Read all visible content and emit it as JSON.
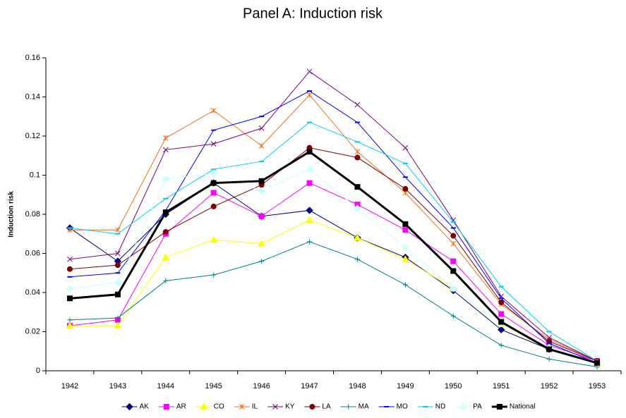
{
  "chart_data": {
    "type": "line",
    "title": "Panel A: Induction risk",
    "y_label": "Induction risk",
    "categories": [
      "1942",
      "1943",
      "1944",
      "1945",
      "1946",
      "1947",
      "1948",
      "1949",
      "1950",
      "1951",
      "1952",
      "1953"
    ],
    "ylim": [
      0,
      0.16
    ],
    "yticks": [
      0,
      0.02,
      0.04,
      0.06,
      0.08,
      0.1,
      0.12,
      0.14,
      0.16
    ],
    "grid": false,
    "legend": "bottom",
    "series": [
      {
        "name": "AK",
        "color": "#000080",
        "marker": "diamond",
        "values": [
          0.073,
          0.056,
          0.08,
          0.096,
          0.079,
          0.082,
          0.068,
          0.058,
          0.041,
          0.021,
          0.011,
          0.004
        ]
      },
      {
        "name": "AR",
        "color": "#ff00ff",
        "marker": "square",
        "values": [
          0.023,
          0.026,
          0.07,
          0.091,
          0.079,
          0.096,
          0.085,
          0.072,
          0.056,
          0.029,
          0.013,
          0.005
        ]
      },
      {
        "name": "CO",
        "color": "#ffff00",
        "marker": "triangle",
        "values": [
          0.023,
          0.023,
          0.058,
          0.067,
          0.065,
          0.077,
          0.068,
          0.057,
          0.042,
          0.024,
          0.011,
          0.004
        ]
      },
      {
        "name": "IL",
        "color": "#f07020",
        "marker": "star",
        "values": [
          0.072,
          0.072,
          0.119,
          0.133,
          0.115,
          0.141,
          0.112,
          0.091,
          0.065,
          0.034,
          0.016,
          0.005
        ]
      },
      {
        "name": "KY",
        "color": "#800080",
        "marker": "x",
        "values": [
          0.057,
          0.06,
          0.113,
          0.116,
          0.124,
          0.153,
          0.136,
          0.114,
          0.077,
          0.038,
          0.017,
          0.005
        ]
      },
      {
        "name": "LA",
        "color": "#800000",
        "marker": "circle",
        "values": [
          0.052,
          0.054,
          0.071,
          0.084,
          0.095,
          0.114,
          0.109,
          0.093,
          0.069,
          0.035,
          0.015,
          0.005
        ]
      },
      {
        "name": "MA",
        "color": "#008080",
        "marker": "plus",
        "values": [
          0.026,
          0.027,
          0.046,
          0.049,
          0.056,
          0.066,
          0.057,
          0.044,
          0.028,
          0.013,
          0.006,
          0.002
        ]
      },
      {
        "name": "MO",
        "color": "#0000ff",
        "marker": "dash",
        "values": [
          0.048,
          0.05,
          0.082,
          0.123,
          0.13,
          0.143,
          0.127,
          0.099,
          0.073,
          0.037,
          0.014,
          0.004
        ]
      },
      {
        "name": "ND",
        "color": "#00ccff",
        "marker": "dash",
        "values": [
          0.073,
          0.07,
          0.088,
          0.103,
          0.107,
          0.127,
          0.117,
          0.106,
          0.076,
          0.043,
          0.02,
          0.005
        ]
      },
      {
        "name": "PA",
        "color": "#ccffff",
        "marker": "diamond",
        "values": [
          0.042,
          0.045,
          0.098,
          0.101,
          0.092,
          0.103,
          0.083,
          0.063,
          0.042,
          0.024,
          0.012,
          0.004
        ]
      },
      {
        "name": "National",
        "color": "#000000",
        "marker": "square",
        "width": 3,
        "values": [
          0.037,
          0.039,
          0.081,
          0.096,
          0.097,
          0.112,
          0.094,
          0.075,
          0.051,
          0.025,
          0.011,
          0.004
        ]
      }
    ]
  }
}
